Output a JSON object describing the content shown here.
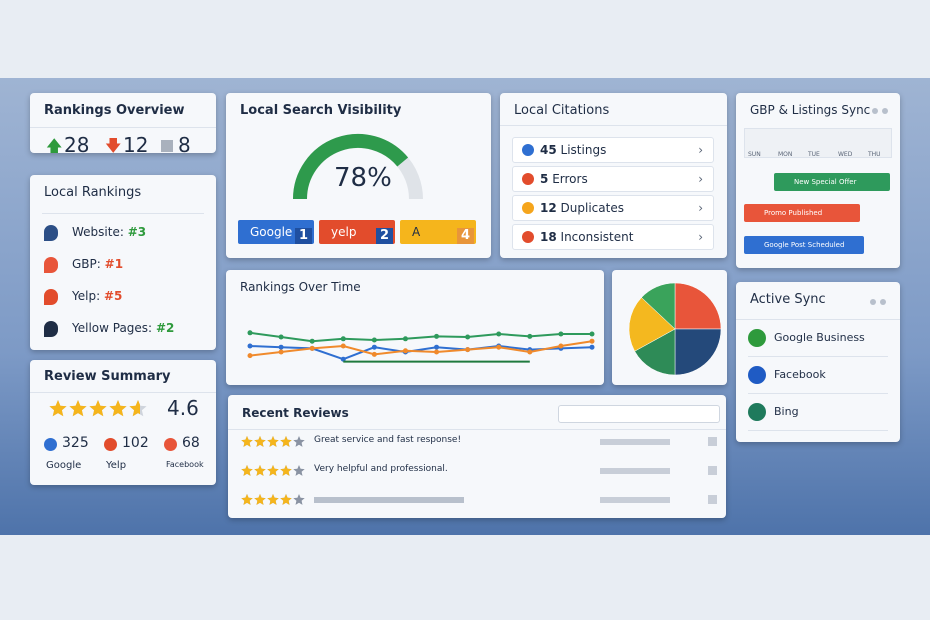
{
  "rankings_overview": {
    "title": "Rankings Overview",
    "up": 28,
    "down": 12,
    "neutral": 8
  },
  "local_rankings": {
    "title": "Local Rankings",
    "items": [
      {
        "label": "Website:",
        "rank": "#3"
      },
      {
        "label": "GBP:",
        "rank": "#1"
      },
      {
        "label": "Yelp:",
        "rank": "#5"
      },
      {
        "label": "Yellow Pages:",
        "rank": "#2"
      }
    ]
  },
  "review_summary": {
    "title": "Review Summary",
    "rating": 4.6,
    "sources": [
      {
        "count": 325,
        "name": "Google"
      },
      {
        "count": 102,
        "name": "Yelp"
      },
      {
        "count": 68,
        "name": "Facebook"
      }
    ]
  },
  "visibility": {
    "title": "Local Search Visibility",
    "gauge": {
      "value": 78,
      "label": "78%"
    },
    "badges": [
      {
        "name": "Google",
        "rank": 1
      },
      {
        "name": "yelp",
        "rank": 2
      },
      {
        "name": "A",
        "rank": 4
      }
    ]
  },
  "citations": {
    "title": "Local Citations",
    "items": [
      {
        "count": 45,
        "label": "Listings"
      },
      {
        "count": 5,
        "label": "Errors"
      },
      {
        "count": 12,
        "label": "Duplicates"
      },
      {
        "count": 18,
        "label": "Inconsistent"
      }
    ]
  },
  "sync_calendar": {
    "title": "GBP & Listings Sync",
    "days": [
      "SUN",
      "MON",
      "TUE",
      "WED",
      "THU"
    ],
    "events": [
      "New Special Offer",
      "Promo Published",
      "Google Post Scheduled"
    ]
  },
  "rankings_over_time": {
    "title": "Rankings Over Time",
    "ylim": [
      0,
      100
    ],
    "series": [
      {
        "color": "#2e9a5c",
        "values": [
          62,
          55,
          48,
          52,
          50,
          52,
          56,
          55,
          60,
          56,
          60,
          60
        ]
      },
      {
        "color": "#2f6fd1",
        "values": [
          40,
          38,
          36,
          18,
          38,
          30,
          38,
          34,
          40,
          34,
          36,
          38
        ]
      },
      {
        "color": "#f08a2c",
        "values": [
          24,
          30,
          36,
          40,
          26,
          32,
          30,
          34,
          38,
          30,
          40,
          48
        ]
      },
      {
        "color": "#1f7a3e",
        "values": [
          null,
          null,
          null,
          14,
          14,
          14,
          14,
          14,
          14,
          14,
          null,
          null
        ]
      }
    ]
  },
  "pie": {
    "colors": [
      "#e8553a",
      "#24497a",
      "#2e8b57",
      "#f4b81f",
      "#3aa35b"
    ],
    "values": [
      25,
      25,
      17,
      20,
      13
    ]
  },
  "active_sync": {
    "title": "Active Sync",
    "items": [
      "Google Business",
      "Facebook",
      "Bing"
    ]
  },
  "recent_reviews": {
    "title": "Recent Reviews",
    "reviews": [
      {
        "stars": 4,
        "text": "Great service and fast response!"
      },
      {
        "stars": 4,
        "text": "Very helpful and professional."
      },
      {
        "stars": 4
      }
    ]
  }
}
